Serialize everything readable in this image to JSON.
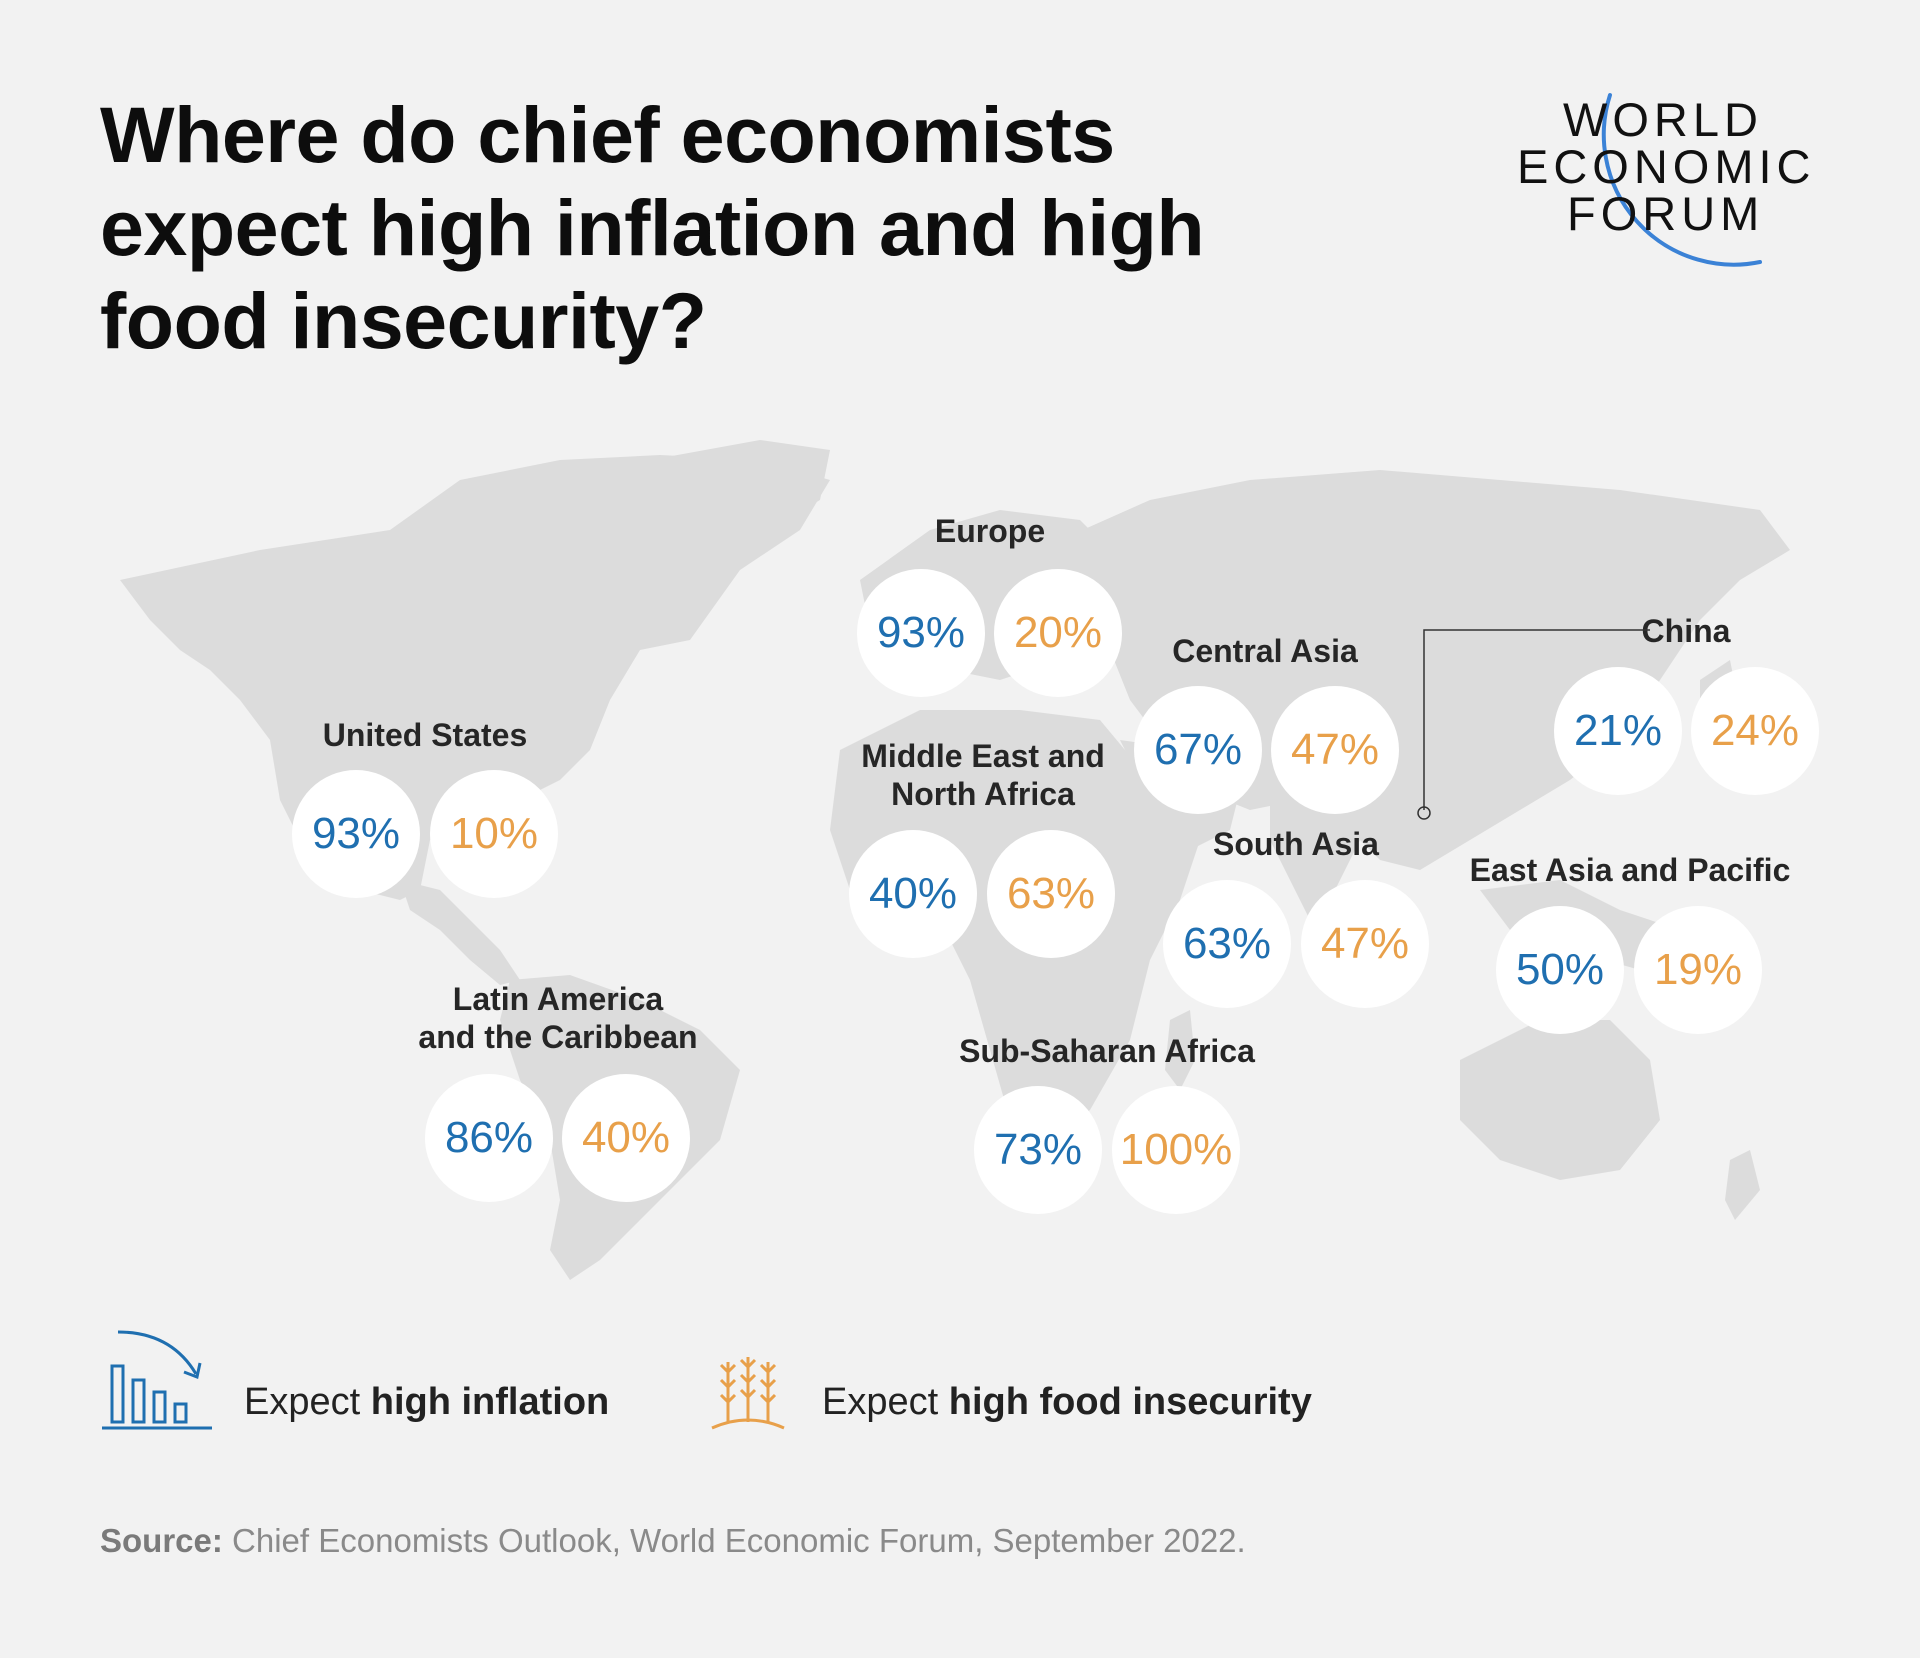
{
  "title": {
    "line1": "Where do chief economists",
    "line2": "expect high inflation and high",
    "line3": "food insecurity?"
  },
  "logo": {
    "line1": "WORLD",
    "line2": "ECONOMIC",
    "line3": "FORUM",
    "arc_color": "#3b82d6"
  },
  "colors": {
    "inflation": "#1f6fb0",
    "food_insecurity": "#e8a04a",
    "land": "#dcdcdc",
    "background": "#f2f2f2"
  },
  "regions": [
    {
      "id": "europe",
      "label_lines": [
        "Europe"
      ],
      "inflation": "93%",
      "food": "20%"
    },
    {
      "id": "central-asia",
      "label_lines": [
        "Central Asia"
      ],
      "inflation": "67%",
      "food": "47%"
    },
    {
      "id": "china",
      "label_lines": [
        "China"
      ],
      "inflation": "21%",
      "food": "24%"
    },
    {
      "id": "united-states",
      "label_lines": [
        "United States"
      ],
      "inflation": "93%",
      "food": "10%"
    },
    {
      "id": "mena",
      "label_lines": [
        "Middle East and",
        "North Africa"
      ],
      "inflation": "40%",
      "food": "63%"
    },
    {
      "id": "south-asia",
      "label_lines": [
        "South Asia"
      ],
      "inflation": "63%",
      "food": "47%"
    },
    {
      "id": "east-asia-pacific",
      "label_lines": [
        "East Asia and Pacific"
      ],
      "inflation": "50%",
      "food": "19%"
    },
    {
      "id": "latin-america",
      "label_lines": [
        "Latin America",
        "and the Caribbean"
      ],
      "inflation": "86%",
      "food": "40%"
    },
    {
      "id": "sub-saharan-africa",
      "label_lines": [
        "Sub-Saharan Africa"
      ],
      "inflation": "73%",
      "food": "100%"
    }
  ],
  "legend": {
    "inflation": {
      "prefix": "Expect ",
      "bold": "high inflation",
      "icon": "bar-chart-down-arrow-icon"
    },
    "food": {
      "prefix": "Expect ",
      "bold": "high food insecurity",
      "icon": "wheat-icon"
    }
  },
  "source": {
    "label": "Source:",
    "text": " Chief Economists Outlook, World Economic Forum, September 2022."
  }
}
